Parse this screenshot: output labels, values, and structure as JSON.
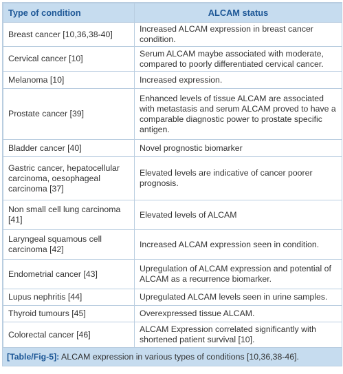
{
  "table": {
    "columns": [
      "Type of condition",
      "ALCAM status"
    ],
    "rows": [
      [
        "Breast cancer [10,36,38-40]",
        "Increased ALCAM expression in breast cancer condition."
      ],
      [
        "Cervical cancer [10]",
        "Serum ALCAM maybe associated with moderate, compared to poorly differentiated cervical cancer."
      ],
      [
        "Melanoma [10]",
        "Increased expression."
      ],
      [
        "Prostate cancer [39]",
        "Enhanced levels of tissue ALCAM are associated with metastasis and serum ALCAM proved to have a comparable diagnostic power to prostate specific antigen."
      ],
      [
        "Bladder cancer [40]",
        "Novel prognostic biomarker"
      ],
      [
        "Gastric cancer, hepatocellular carcinoma, oesophageal carcinoma [37]",
        "Elevated levels are indicative of cancer poorer prognosis."
      ],
      [
        "Non small cell lung carcinoma [41]",
        "Elevated levels of ALCAM"
      ],
      [
        "Laryngeal squamous cell carcinoma [42]",
        "Increased ALCAM expression seen in condition."
      ],
      [
        "Endometrial cancer [43]",
        "Upregulation of ALCAM expression and potential of ALCAM as a recurrence biomarker."
      ],
      [
        "Lupus nephritis [44]",
        "Upregulated ALCAM levels seen in urine samples."
      ],
      [
        "Thyroid tumours [45]",
        "Overexpressed tissue ALCAM."
      ],
      [
        "Colorectal cancer [46]",
        "ALCAM Expression correlated significantly with shortened patient survival [10]."
      ]
    ]
  },
  "caption": {
    "label": "[Table/Fig-5]:",
    "text": "ALCAM expression in various types of conditions [10,36,38-46]."
  }
}
